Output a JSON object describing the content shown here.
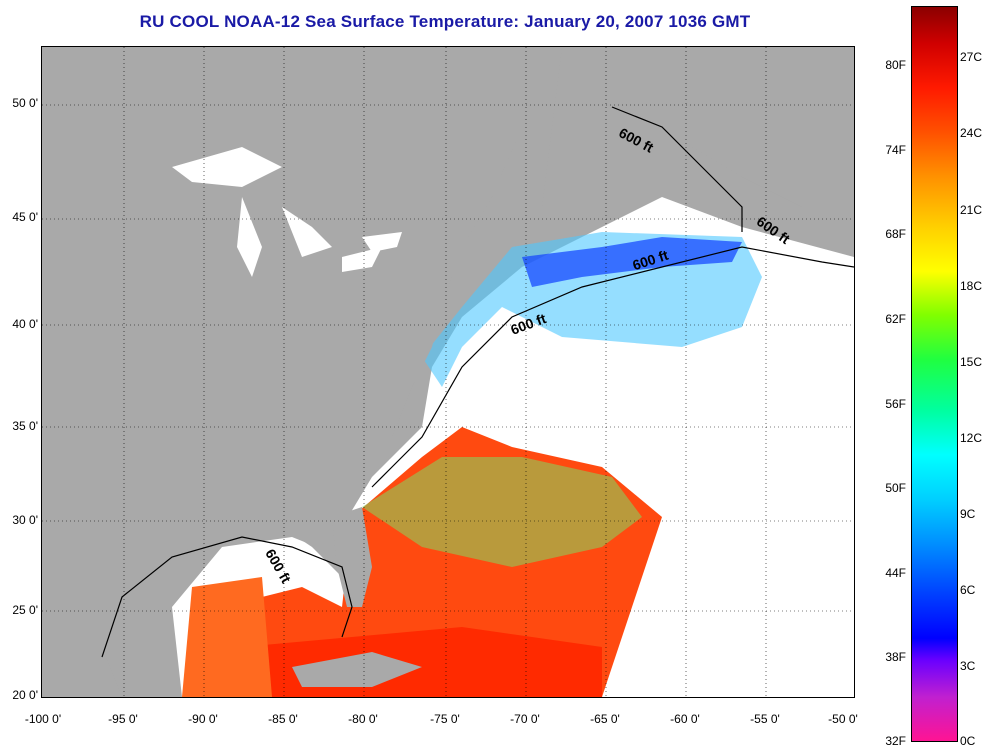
{
  "title": "RU COOL  NOAA-12  Sea Surface Temperature:  January 20, 2007 1036 GMT",
  "map": {
    "lat_labels": [
      "50 0'",
      "45 0'",
      "40 0'",
      "35 0'",
      "30 0'",
      "25 0'",
      "20 0'"
    ],
    "lon_labels": [
      "-100 0'",
      "-95 0'",
      "-90 0'",
      "-85 0'",
      "-80 0'",
      "-75 0'",
      "-70 0'",
      "-65 0'",
      "-60 0'",
      "-55 0'",
      "-50 0'"
    ],
    "contour_labels": [
      "600 ft",
      "600 ft",
      "600 ft",
      "600 ft",
      "600 ft"
    ],
    "colors": {
      "land": "#a9a9a9",
      "cloud": "#ffffff",
      "frame": "#000000"
    }
  },
  "colorbar": {
    "fahrenheit": [
      "80F",
      "74F",
      "68F",
      "62F",
      "56F",
      "50F",
      "44F",
      "38F",
      "32F"
    ],
    "celsius": [
      "27C",
      "24C",
      "21C",
      "18C",
      "15C",
      "12C",
      "9C",
      "6C",
      "3C",
      "0C"
    ]
  }
}
